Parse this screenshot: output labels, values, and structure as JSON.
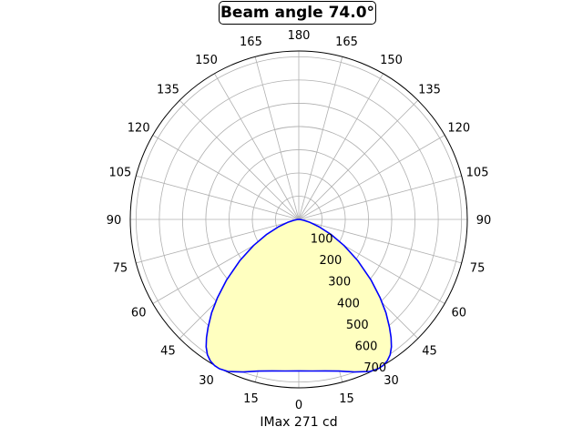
{
  "chart_data": {
    "type": "polar",
    "title": "Beam angle 74.0°",
    "xlabel": "IMax 271 cd",
    "angle_ticks": {
      "left": [
        "0",
        "15",
        "30",
        "45",
        "60",
        "75",
        "90",
        "105",
        "120",
        "135",
        "150",
        "165",
        "180"
      ],
      "right": [
        "15",
        "30",
        "45",
        "60",
        "75",
        "90",
        "105",
        "120",
        "135",
        "150",
        "165"
      ]
    },
    "angle_tick_degrees": [
      0,
      15,
      30,
      45,
      60,
      75,
      90,
      105,
      120,
      135,
      150,
      165,
      180
    ],
    "radial_ticks": [
      "100",
      "200",
      "300",
      "400",
      "500",
      "600",
      "700"
    ],
    "rlim": [
      0,
      700
    ],
    "grid": true,
    "colors": {
      "line": "#0000ff",
      "fill": "#ffffc0",
      "grid": "#b0b0b0"
    },
    "series": [
      {
        "angles_deg": [
          0,
          5,
          10,
          15,
          20,
          25,
          28,
          30,
          32,
          34,
          36,
          38,
          40,
          43,
          46,
          50,
          55,
          60,
          65,
          70,
          75,
          80,
          85,
          90
        ],
        "values": [
          652,
          655,
          662,
          676,
          699,
          722,
          728,
          726,
          718,
          703,
          678,
          645,
          607,
          550,
          487,
          405,
          310,
          225,
          152,
          92,
          50,
          22,
          6,
          0
        ]
      }
    ]
  }
}
